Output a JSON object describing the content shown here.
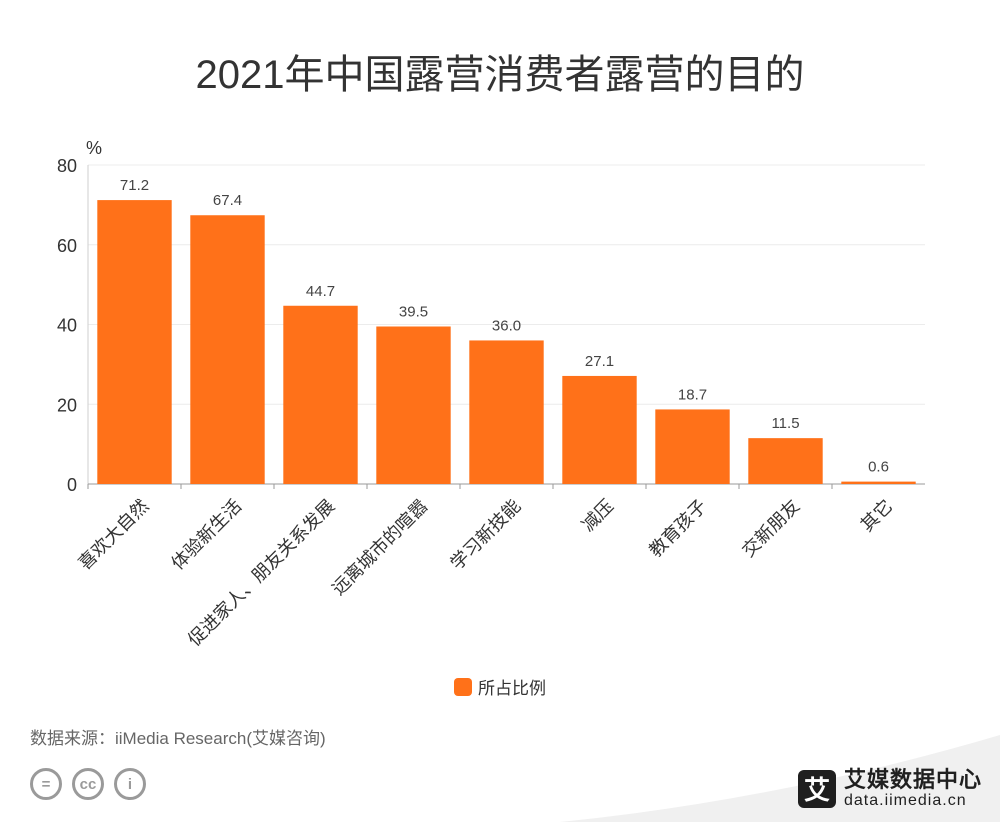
{
  "title": "2021年中国露营消费者露营的目的",
  "chart_data": {
    "type": "bar",
    "title": "2021年中国露营消费者露营的目的",
    "ylabel": "%",
    "xlabel": "",
    "ylim": [
      0,
      80
    ],
    "yticks": [
      0,
      20,
      40,
      60,
      80
    ],
    "grid": true,
    "legend_position": "bottom",
    "categories": [
      "喜欢大自然",
      "体验新生活",
      "促进家人、朋友关系发展",
      "远离城市的喧嚣",
      "学习新技能",
      "减压",
      "教育孩子",
      "交新朋友",
      "其它"
    ],
    "series": [
      {
        "name": "所占比例",
        "color": "#FF7119",
        "values": [
          71.2,
          67.4,
          44.7,
          39.5,
          36.0,
          27.1,
          18.7,
          11.5,
          0.6
        ],
        "labels": [
          "71.2",
          "67.4",
          "44.7",
          "39.5",
          "36.0",
          "27.1",
          "18.7",
          "11.5",
          "0.6"
        ]
      }
    ]
  },
  "source": "数据来源：iiMedia Research(艾媒咨询)",
  "license_icons": [
    "equal-icon",
    "cc-icon",
    "person-icon"
  ],
  "license_glyphs": [
    "=",
    "cc",
    "i"
  ],
  "brand": {
    "logo_char": "艾",
    "name": "艾媒数据中心",
    "url": "data.iimedia.cn"
  }
}
